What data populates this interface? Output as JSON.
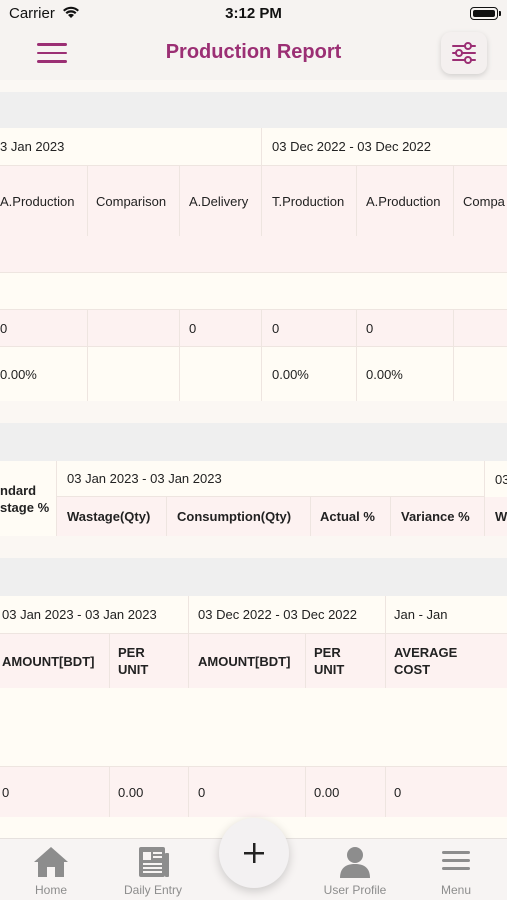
{
  "status_bar": {
    "carrier": "Carrier",
    "time": "3:12 PM"
  },
  "header": {
    "title": "Production Report",
    "menu_icon": "hamburger-icon",
    "filter_icon": "sliders-icon"
  },
  "table1": {
    "periods": [
      "3 Jan 2023",
      "03 Dec 2022 - 03 Dec 2022"
    ],
    "columns": [
      "A.Production",
      "Comparison",
      "A.Delivery",
      "T.Production",
      "A.Production",
      "Compa"
    ],
    "row_values": [
      "0",
      "",
      "0",
      "0",
      "0",
      ""
    ],
    "row_percent": [
      "0.00%",
      "",
      "",
      "0.00%",
      "0.00%",
      ""
    ]
  },
  "table2": {
    "first_header": [
      "ndard",
      "stage %"
    ],
    "periods": [
      "03 Jan 2023 - 03 Jan 2023",
      "03"
    ],
    "columns": [
      "Wastage(Qty)",
      "Consumption(Qty)",
      "Actual %",
      "Variance %",
      "W"
    ]
  },
  "table3": {
    "periods": [
      "03 Jan 2023 - 03 Jan 2023",
      "03 Dec 2022 - 03 Dec 2022",
      "Jan - Jan"
    ],
    "columns": [
      [
        "AMOUNT[BDT]"
      ],
      [
        "PER",
        "UNIT"
      ],
      [
        "AMOUNT[BDT]"
      ],
      [
        "PER",
        "UNIT"
      ],
      [
        "AVERAGE",
        "COST"
      ]
    ],
    "row_values": [
      "0",
      "0.00",
      "0",
      "0.00",
      "0"
    ]
  },
  "nav": {
    "items": [
      {
        "label": "Home",
        "icon": "home-icon"
      },
      {
        "label": "Daily Entry",
        "icon": "newspaper-icon"
      },
      {
        "label": "User Profile",
        "icon": "user-icon"
      },
      {
        "label": "Menu",
        "icon": "menu-icon"
      }
    ],
    "fab_icon": "plus-icon"
  },
  "colors": {
    "accent": "#9b2f74",
    "nav_gray": "#8d8d8d"
  }
}
